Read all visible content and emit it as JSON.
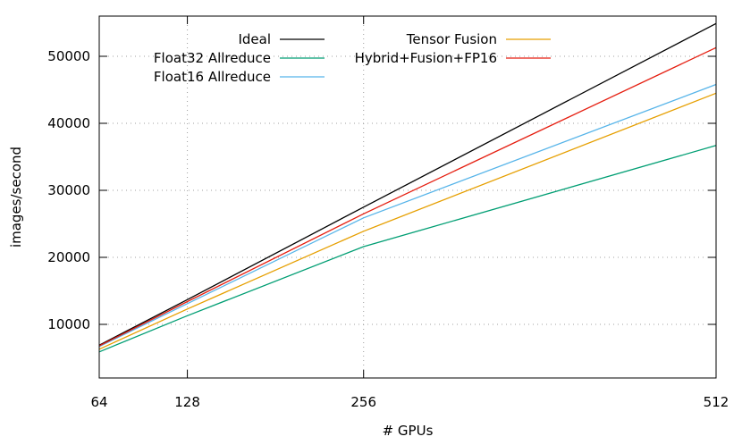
{
  "chart_data": {
    "type": "line",
    "title": "",
    "xlabel": "# GPUs",
    "ylabel": "images/second",
    "xlim": [
      64,
      512
    ],
    "ylim": [
      2000,
      56000
    ],
    "x_ticks": [
      64,
      128,
      256,
      512
    ],
    "y_ticks": [
      10000,
      20000,
      30000,
      40000,
      50000
    ],
    "grid": true,
    "legend_position": "top-left",
    "x": [
      64,
      128,
      256,
      512
    ],
    "series": [
      {
        "name": "Ideal",
        "color": "#000000",
        "values": [
          6900,
          13700,
          27500,
          54900
        ]
      },
      {
        "name": "Float32 Allreduce",
        "color": "#009e73",
        "values": [
          5900,
          11300,
          21600,
          36700
        ]
      },
      {
        "name": "Float16 Allreduce",
        "color": "#56b4e9",
        "values": [
          6700,
          13100,
          25900,
          45800
        ]
      },
      {
        "name": "Tensor Fusion",
        "color": "#e69f00",
        "values": [
          6300,
          12300,
          23900,
          44500
        ]
      },
      {
        "name": "Hybrid+Fusion+FP16",
        "color": "#e51e10",
        "values": [
          6800,
          13400,
          26500,
          51300
        ]
      }
    ]
  }
}
